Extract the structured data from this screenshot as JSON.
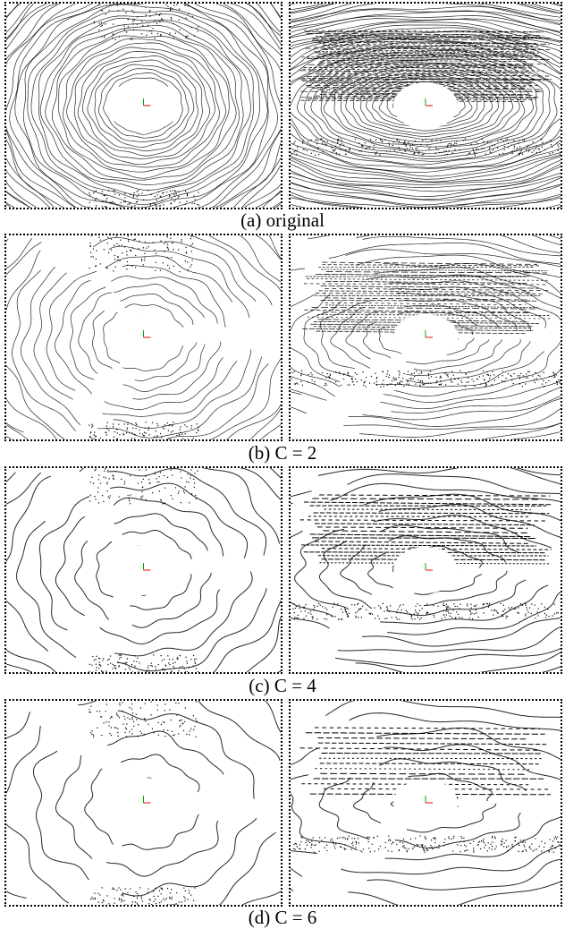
{
  "figure": {
    "rows": [
      {
        "caption": "(a) original",
        "level": 0
      },
      {
        "caption": "(b) C = 2",
        "level": 1
      },
      {
        "caption": "(c) C = 4",
        "level": 2
      },
      {
        "caption": "(d) C = 6",
        "level": 3
      }
    ],
    "panels": [
      "bird's-eye point cloud",
      "perspective point cloud"
    ],
    "colors": {
      "points": "#000000",
      "axis_x": "#ff0000",
      "axis_y": "#00aa00",
      "border": "#000000"
    }
  }
}
